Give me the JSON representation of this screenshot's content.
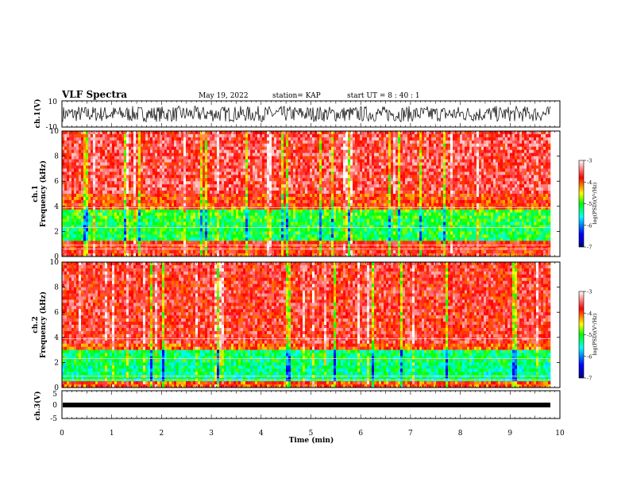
{
  "header": {
    "title": "VLF Spectra",
    "date": "May 19, 2022",
    "station": "station= KAP",
    "start": "start  UT =   8  : 40 : 1"
  },
  "chart_data": [
    {
      "type": "line",
      "panel": "ch1-waveform",
      "ylabel": "ch.1(V)",
      "ylim": [
        -10,
        10
      ],
      "ytick_labels": [
        "10",
        "-10"
      ],
      "xlim": [
        0,
        10
      ],
      "note_values": "noisy broadband waveform spanning roughly -6 to 6 V"
    },
    {
      "type": "heatmap",
      "panel": "ch1-spectrogram",
      "ylabel_line1": "ch.1",
      "ylabel_line2": "Frequency (kHz)",
      "ylim": [
        0,
        10
      ],
      "ytick_labels": [
        "0",
        "2",
        "4",
        "6",
        "8",
        "10"
      ],
      "xlim": [
        0,
        9.8
      ],
      "bands": [
        {
          "from_khz": 5.0,
          "to_khz": 10.0,
          "level": -3.6
        },
        {
          "from_khz": 3.9,
          "to_khz": 5.0,
          "level": -3.9
        },
        {
          "from_khz": 3.0,
          "to_khz": 3.8,
          "level": -5.0
        },
        {
          "from_khz": 1.2,
          "to_khz": 3.0,
          "level": -5.1
        },
        {
          "from_khz": 0.0,
          "to_khz": 1.2,
          "level": -3.8
        }
      ],
      "colorbar": {
        "label": "log(PSD)(V²/Hz)",
        "range": [
          -7,
          -3
        ],
        "tick_labels": [
          "-3",
          "-4",
          "-5",
          "-6",
          "-7"
        ]
      }
    },
    {
      "type": "heatmap",
      "panel": "ch2-spectrogram",
      "ylabel_line1": "ch.2",
      "ylabel_line2": "Frequency (kHz)",
      "ylim": [
        0,
        10
      ],
      "ytick_labels": [
        "0",
        "2",
        "4",
        "6",
        "8",
        "10"
      ],
      "xlim": [
        0,
        9.8
      ],
      "bands": [
        {
          "from_khz": 3.6,
          "to_khz": 10.0,
          "level": -3.7
        },
        {
          "from_khz": 2.0,
          "to_khz": 3.0,
          "level": -5.2
        },
        {
          "from_khz": 0.5,
          "to_khz": 1.9,
          "level": -5.3
        },
        {
          "from_khz": 0.0,
          "to_khz": 0.5,
          "level": -4.0
        }
      ],
      "colorbar": {
        "label": "log(PSD)(V²/Hz)",
        "range": [
          -7,
          -3
        ],
        "tick_labels": [
          "-3",
          "-4",
          "-5",
          "-6",
          "-7"
        ]
      }
    },
    {
      "type": "line",
      "panel": "ch3-waveform",
      "ylabel": "ch.3(V)",
      "ylim": [
        -5,
        5
      ],
      "ytick_labels": [
        "5",
        "0",
        "-5"
      ],
      "xlim": [
        0,
        10
      ],
      "note_values": "near-constant level around -1 V"
    }
  ],
  "xaxis": {
    "label": "Time (min)",
    "range": [
      0,
      10
    ],
    "tick_labels": [
      "0",
      "1",
      "2",
      "3",
      "4",
      "5",
      "6",
      "7",
      "8",
      "9",
      "10"
    ]
  },
  "colors": {
    "spectrogram_map": [
      "#000080",
      "#0000ff",
      "#00ffff",
      "#00ff00",
      "#ffff00",
      "#ff0000",
      "#ffffff"
    ],
    "axes": "#000000"
  }
}
